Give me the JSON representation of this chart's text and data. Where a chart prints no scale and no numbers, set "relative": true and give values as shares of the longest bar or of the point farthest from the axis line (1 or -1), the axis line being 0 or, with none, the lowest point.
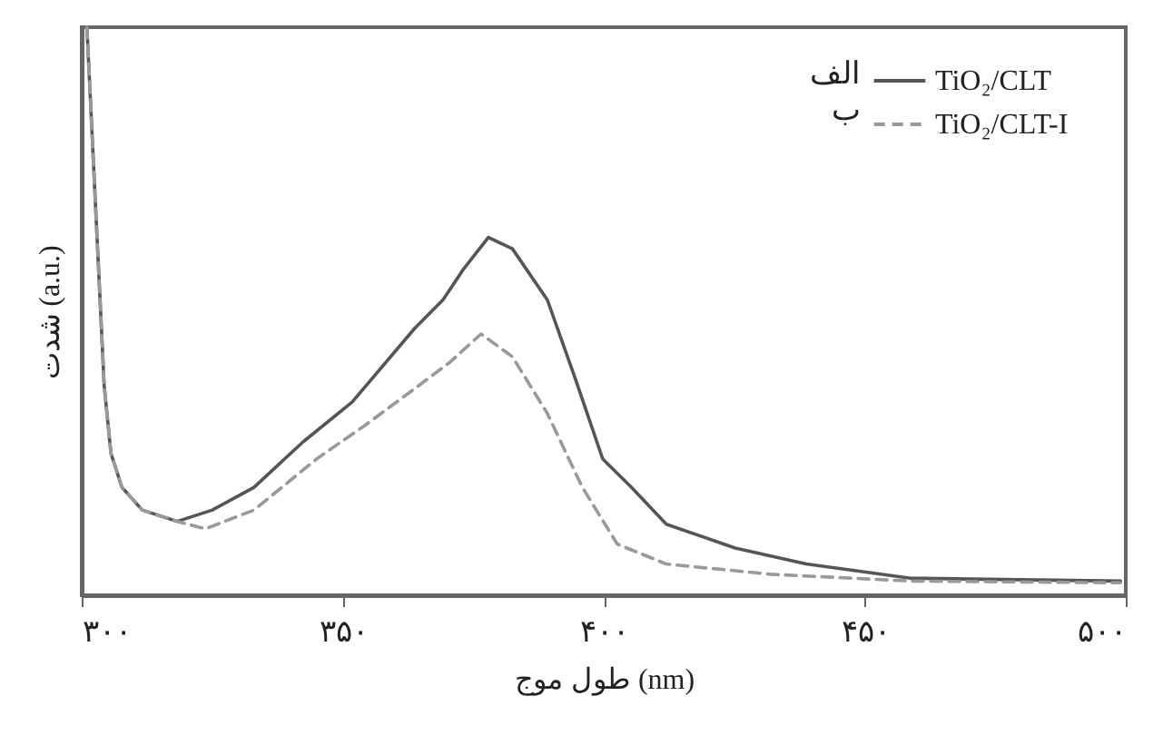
{
  "chart_data": {
    "type": "line",
    "relative": true,
    "xlabel": "طول موج (nm)",
    "ylabel": "شدت (a.u.)",
    "xlim": [
      300,
      500
    ],
    "xticks": [
      {
        "value": 300,
        "label": "۳۰۰"
      },
      {
        "value": 350,
        "label": "۳۵۰"
      },
      {
        "value": 400,
        "label": "۴۰۰"
      },
      {
        "value": 450,
        "label": "۴۵۰"
      },
      {
        "value": 500,
        "label": "۵۰۰"
      }
    ],
    "tick_labels": "x",
    "grid": false,
    "legend": "top right",
    "marker": "none",
    "annotations": [
      "الف",
      "ب"
    ],
    "series": [
      {
        "name": "TiO₂/CLT",
        "color": "#555555",
        "line_style": "solid",
        "x": [
          301,
          304.3,
          305.6,
          307.7,
          311.6,
          318.3,
          325,
          333,
          342.4,
          351.8,
          363.8,
          369.2,
          373.2,
          377.9,
          382.5,
          389.2,
          394.6,
          399.8,
          405.3,
          412,
          425.2,
          438.8,
          458.8,
          499
        ],
        "values": [
          1,
          0.37,
          0.25,
          0.19,
          0.15,
          0.13,
          0.15,
          0.19,
          0.27,
          0.34,
          0.47,
          0.52,
          0.575,
          0.63,
          0.61,
          0.52,
          0.38,
          0.24,
          0.19,
          0.125,
          0.083,
          0.055,
          0.03,
          0.025
        ]
      },
      {
        "name": "TiO₂/CLT-I",
        "color": "#999999",
        "line_style": "dashed",
        "x": [
          301,
          304.3,
          305.6,
          307.7,
          311.6,
          318.3,
          323.7,
          333,
          345,
          354.4,
          362.5,
          370.5,
          376.5,
          382.5,
          389.2,
          395.9,
          402.6,
          412,
          432,
          458.8,
          499
        ],
        "values": [
          1,
          0.37,
          0.25,
          0.19,
          0.15,
          0.13,
          0.117,
          0.15,
          0.24,
          0.3,
          0.355,
          0.41,
          0.46,
          0.42,
          0.32,
          0.19,
          0.09,
          0.055,
          0.037,
          0.025,
          0.022
        ]
      }
    ]
  }
}
